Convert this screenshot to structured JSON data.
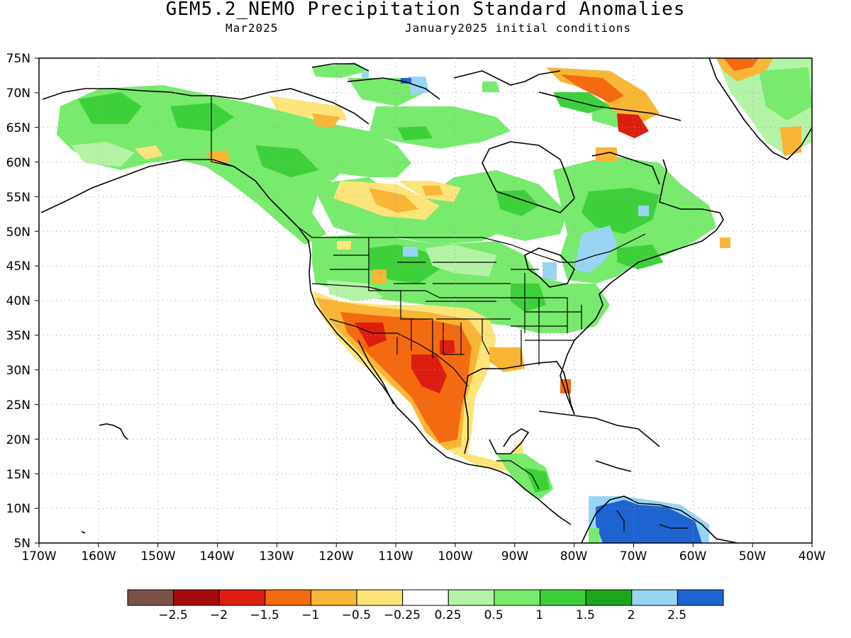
{
  "map": {
    "title": "GEM5.2_NEMO Precipitation Standard Anomalies",
    "subtitle_left": "Mar2025",
    "subtitle_right": "January2025 initial conditions",
    "lat_labels": [
      "75N",
      "70N",
      "65N",
      "60N",
      "55N",
      "50N",
      "45N",
      "40N",
      "35N",
      "30N",
      "25N",
      "20N",
      "15N",
      "10N",
      "5N"
    ],
    "lon_labels": [
      "170W",
      "160W",
      "150W",
      "140W",
      "130W",
      "120W",
      "110W",
      "100W",
      "90W",
      "80W",
      "70W",
      "60W",
      "50W",
      "40W"
    ],
    "colorbar": {
      "colors": [
        "#7a5248",
        "#a50a0a",
        "#dc1e10",
        "#f46a10",
        "#f9b535",
        "#fde47a",
        "#ffffff",
        "#b4f3a6",
        "#78ea6e",
        "#3ed03a",
        "#1ea51e",
        "#9ad4f5",
        "#1f63d0"
      ],
      "labels": [
        "−2.5",
        "−2",
        "−1.5",
        "−1",
        "−0.5",
        "−0.25",
        "0.25",
        "0.5",
        "1",
        "1.5",
        "2",
        "2.5"
      ]
    }
  }
}
